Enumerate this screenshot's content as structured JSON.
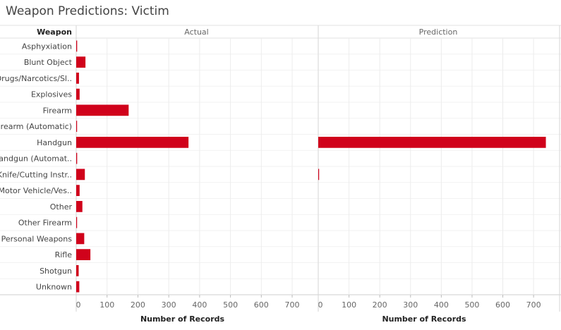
{
  "title": "Weapon Predictions:  Victim",
  "chart_data": {
    "type": "bar",
    "orientation": "horizontal",
    "row_header": "Weapon",
    "categories": [
      "Asphyxiation",
      "Blunt Object",
      "Drugs/Narcotics/Sl..",
      "Explosives",
      "Firearm",
      "Firearm (Automatic)",
      "Handgun",
      "Handgun (Automat..",
      "Knife/Cutting Instr..",
      "Motor Vehicle/Ves..",
      "Other",
      "Other Firearm",
      "Personal Weapons",
      "Rifle",
      "Shotgun",
      "Unknown"
    ],
    "panels": [
      {
        "name": "Actual",
        "values": [
          3,
          30,
          9,
          11,
          170,
          1,
          364,
          3,
          28,
          11,
          20,
          1,
          26,
          46,
          8,
          10
        ],
        "xlabel": "Number of Records",
        "xlim": [
          0,
          780
        ],
        "ticks": [
          0,
          100,
          200,
          300,
          400,
          500,
          600,
          700
        ]
      },
      {
        "name": "Prediction",
        "values": [
          0,
          0,
          0,
          0,
          0,
          0,
          740,
          0,
          2,
          0,
          0,
          0,
          0,
          0,
          0,
          0
        ],
        "xlabel": "Number of Records",
        "xlim": [
          0,
          780
        ],
        "ticks": [
          0,
          100,
          200,
          300,
          400,
          500,
          600,
          700
        ]
      }
    ],
    "bar_color": "#d0021b",
    "grid": true
  }
}
